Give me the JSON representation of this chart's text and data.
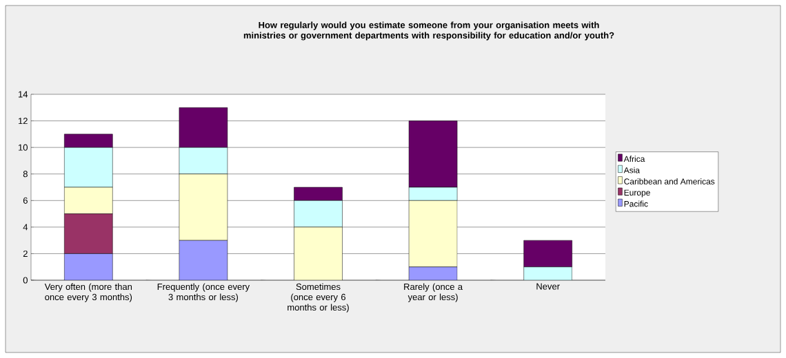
{
  "chart_data": {
    "type": "bar",
    "stacked": true,
    "title": "How regularly would you estimate someone from your organisation meets with ministries or government departments with responsibility for education and/or youth?",
    "categories": [
      "Very often (more than once every 3 months)",
      "Frequently (once every 3 months or less)",
      "Sometimes (once every 6 months or less)",
      "Rarely (once a year or less)",
      "Never"
    ],
    "series": [
      {
        "name": "Pacific",
        "color": "#9999ff",
        "values": [
          2,
          3,
          0,
          1,
          0
        ]
      },
      {
        "name": "Europe",
        "color": "#993366",
        "values": [
          3,
          0,
          0,
          0,
          0
        ]
      },
      {
        "name": "Caribbean and Americas",
        "color": "#ffffcc",
        "values": [
          2,
          5,
          4,
          5,
          0
        ]
      },
      {
        "name": "Asia",
        "color": "#ccffff",
        "values": [
          3,
          2,
          2,
          1,
          1
        ]
      },
      {
        "name": "Africa",
        "color": "#660066",
        "values": [
          1,
          3,
          1,
          5,
          2
        ]
      }
    ],
    "ylim": [
      0,
      14
    ],
    "yticks": [
      0,
      2,
      4,
      6,
      8,
      10,
      12,
      14
    ],
    "grid": "y",
    "legend": "right"
  }
}
